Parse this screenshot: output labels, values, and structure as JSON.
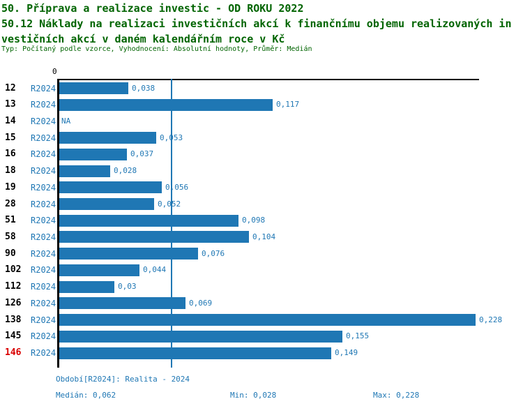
{
  "header": {
    "title": "50. Příprava a realizace investic - OD ROKU 2022",
    "subtitle_line1": "50.12 Náklady na realizaci investičních akcí k finančnímu objemu realizovaných in",
    "subtitle_line2": "vestičních akcí v daném kalendářním roce v Kč",
    "meta": "Typ: Počítaný podle vzorce, Vyhodnocení: Absolutní hodnoty, Průměr: Medián"
  },
  "chart_data": {
    "type": "bar",
    "orientation": "horizontal",
    "title": "50.12 Náklady na realizaci investičních akcí k finančnímu objemu realizovaných investičních akcí v daném kalendářním roce v Kč",
    "zero_label": "0",
    "series_label": "R2024",
    "categories": [
      "12",
      "13",
      "14",
      "15",
      "16",
      "18",
      "19",
      "28",
      "51",
      "58",
      "90",
      "102",
      "112",
      "126",
      "138",
      "145",
      "146"
    ],
    "values": [
      0.038,
      0.117,
      null,
      0.053,
      0.037,
      0.028,
      0.056,
      0.052,
      0.098,
      0.104,
      0.076,
      0.044,
      0.03,
      0.069,
      0.228,
      0.155,
      0.149
    ],
    "value_labels": [
      "0,038",
      "0,117",
      "NA",
      "0,053",
      "0,037",
      "0,028",
      "0,056",
      "0,052",
      "0,098",
      "0,104",
      "0,076",
      "0,044",
      "0,03",
      "0,069",
      "0,228",
      "0,155",
      "0,149"
    ],
    "highlighted_category": "146",
    "median": 0.062,
    "min": 0.028,
    "max": 0.228,
    "xlim": [
      0,
      0.23
    ],
    "grid": false,
    "legend": false
  },
  "footer": {
    "period": "Období[R2024]: Realita - 2024",
    "median": "Medián: 0,062",
    "min": "Min: 0,028",
    "max": "Max: 0,228"
  },
  "colors": {
    "title_green": "#006400",
    "bar_blue": "#1f77b4",
    "label_blue": "#1f77b4",
    "highlight_red": "#d90000",
    "axis_black": "#000000"
  }
}
